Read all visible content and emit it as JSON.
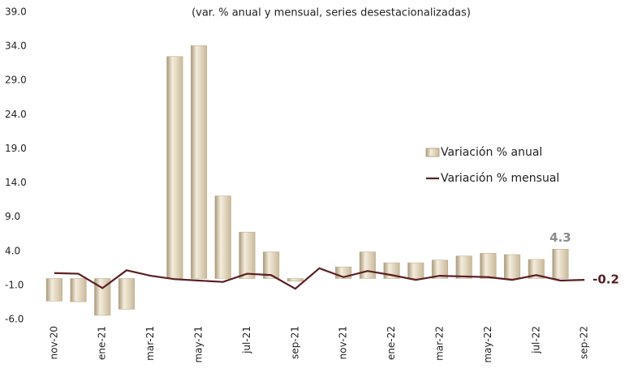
{
  "chart_data": {
    "type": "bar_line",
    "subtitle": "(var. % anual y mensual, series desestacionalizadas)",
    "categories": [
      "nov-20",
      null,
      "ene-21",
      null,
      "mar-21",
      null,
      "may-21",
      null,
      "jul-21",
      null,
      "sep-21",
      null,
      "nov-21",
      null,
      "ene-22",
      null,
      "mar-22",
      null,
      "may-22",
      null,
      "jul-22",
      null,
      "sep-22"
    ],
    "series": [
      {
        "name": "Variación % anual",
        "type": "bar",
        "color": "#ddd0b3",
        "values": [
          -3.3,
          -3.4,
          -5.4,
          -4.5,
          0,
          32.5,
          34.1,
          12.1,
          6.8,
          3.9,
          -0.4,
          0,
          1.7,
          3.9,
          2.3,
          2.3,
          2.7,
          3.3,
          3.7,
          3.5,
          2.8,
          4.3,
          null
        ],
        "value_labels": [
          null,
          null,
          null,
          null,
          null,
          null,
          null,
          null,
          null,
          null,
          null,
          null,
          null,
          null,
          null,
          null,
          null,
          null,
          null,
          null,
          null,
          "4.3",
          null
        ]
      },
      {
        "name": "Variación % mensual",
        "type": "line",
        "color": "#5a1f24",
        "values": [
          0.8,
          0.7,
          -1.4,
          1.2,
          0.4,
          -0.1,
          -0.3,
          -0.5,
          0.7,
          0.5,
          -1.5,
          1.5,
          0.2,
          1.1,
          0.5,
          -0.2,
          0.4,
          0.3,
          0.2,
          -0.2,
          0.5,
          -0.3,
          -0.2
        ],
        "value_labels": [
          null,
          null,
          null,
          null,
          null,
          null,
          null,
          null,
          null,
          null,
          null,
          null,
          null,
          null,
          null,
          null,
          null,
          null,
          null,
          null,
          null,
          null,
          "-0.2"
        ]
      }
    ],
    "ylim": [
      -6,
      39
    ],
    "yticks": [
      {
        "value": -6,
        "label": "-6.0"
      },
      {
        "value": -1,
        "label": "-1.0"
      },
      {
        "value": 4,
        "label": "4.0"
      },
      {
        "value": 9,
        "label": "9.0"
      },
      {
        "value": 14,
        "label": "14.0"
      },
      {
        "value": 19,
        "label": "19.0"
      },
      {
        "value": 24,
        "label": "24.0"
      },
      {
        "value": 29,
        "label": "29.0"
      },
      {
        "value": 34,
        "label": "34.0"
      },
      {
        "value": 39,
        "label": "39.0"
      }
    ],
    "grid": false,
    "legend": "right"
  }
}
